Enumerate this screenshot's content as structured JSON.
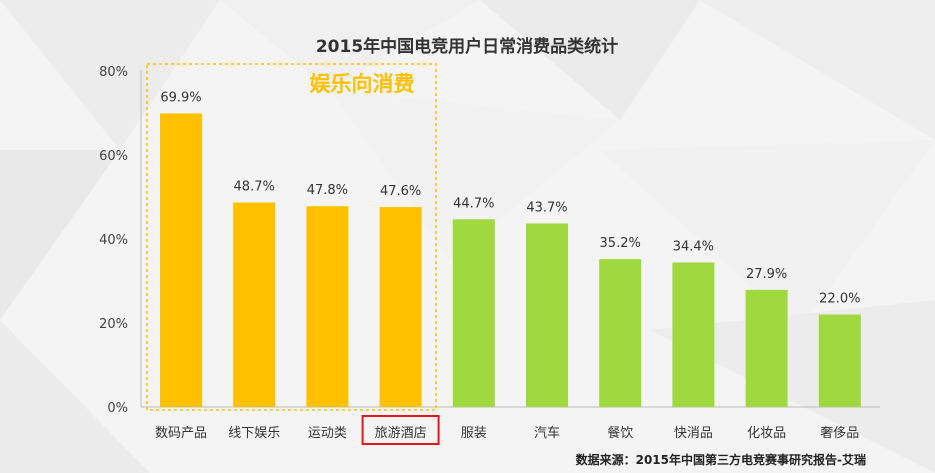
{
  "chart_data": {
    "type": "bar",
    "title": "2015年中国电竞用户日常消费品类统计",
    "categories": [
      "数码产品",
      "线下娱乐",
      "运动类",
      "旅游酒店",
      "服装",
      "汽车",
      "餐饮",
      "快消品",
      "化妆品",
      "奢侈品"
    ],
    "values": [
      69.9,
      48.7,
      47.8,
      47.6,
      44.7,
      43.7,
      35.2,
      34.4,
      27.9,
      22.0
    ],
    "value_labels": [
      "69.9%",
      "48.7%",
      "47.8%",
      "47.6%",
      "44.7%",
      "43.7%",
      "35.2%",
      "34.4%",
      "27.9%",
      "22.0%"
    ],
    "yticks": [
      "0%",
      "20%",
      "40%",
      "60%",
      "80%"
    ],
    "ylim": [
      0,
      80
    ],
    "xlabel": "",
    "ylabel": "",
    "grid": false,
    "highlight_group": {
      "label": "娱乐向消费",
      "categories": [
        "数码产品",
        "线下娱乐",
        "运动类",
        "旅游酒店"
      ],
      "color": "#ffc000"
    },
    "highlighted_category": "旅游酒店",
    "colors": {
      "entertainment": "#ffc000",
      "other": "#9fd83f",
      "highlight_box": "#e8161b"
    }
  },
  "source_note": "数据来源：2015年中国第三方电竞赛事研究报告-艾瑞"
}
